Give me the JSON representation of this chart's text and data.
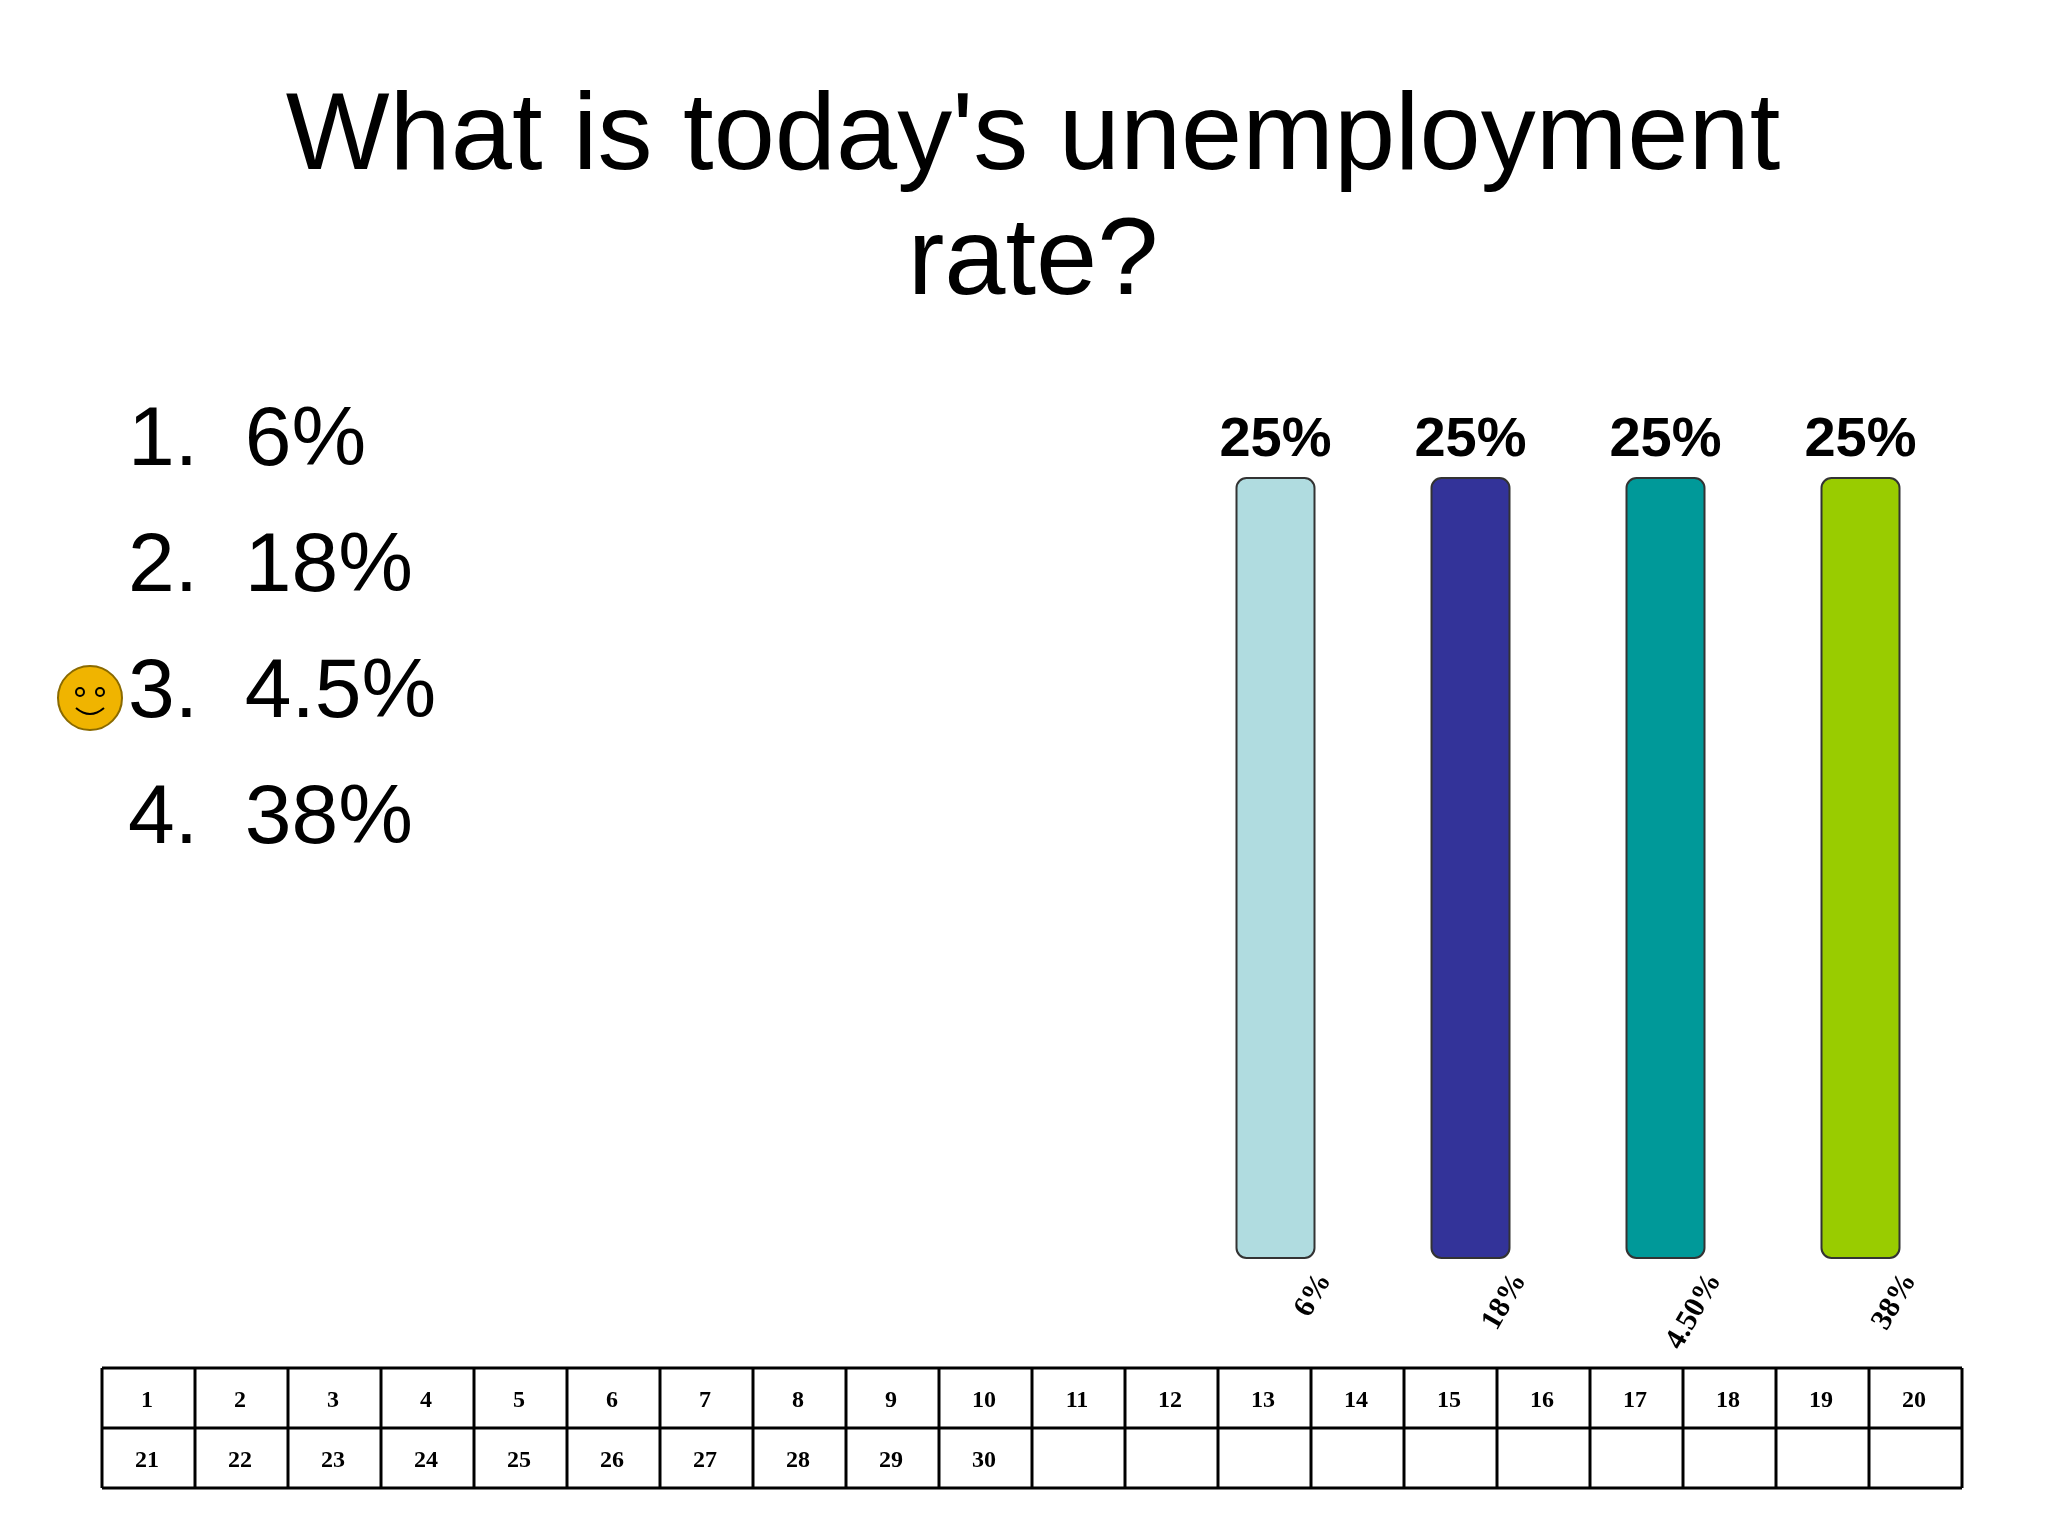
{
  "chart_data": {
    "type": "bar",
    "title": "What is today's unemployment rate?",
    "categories": [
      "6%",
      "18%",
      "4.50%",
      "38%"
    ],
    "values": [
      25,
      25,
      25,
      25
    ],
    "colors": [
      "#b0dce0",
      "#333399",
      "#009999",
      "#99cc00"
    ],
    "value_labels": [
      "25%",
      "25%",
      "25%",
      "25%"
    ],
    "annotations": [
      "1.  6%",
      "2.  18%",
      "3.  4.5%",
      "4.  38%",
      "1",
      "2",
      "3",
      "4",
      "5",
      "6",
      "7",
      "8",
      "9",
      "10",
      "11",
      "12",
      "13",
      "14",
      "15",
      "16",
      "17",
      "18",
      "19",
      "20",
      "21",
      "22",
      "23",
      "24",
      "25",
      "26",
      "27",
      "28",
      "29",
      "30"
    ]
  }
}
